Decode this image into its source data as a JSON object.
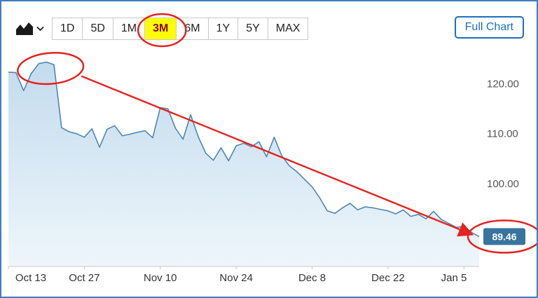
{
  "toolbar": {
    "chart_type_icon": "area-chart-icon",
    "dropdown_icon": "chevron-down-icon",
    "ranges": [
      {
        "label": "1D",
        "active": false
      },
      {
        "label": "5D",
        "active": false
      },
      {
        "label": "1M",
        "active": false
      },
      {
        "label": "3M",
        "active": true
      },
      {
        "label": "6M",
        "active": false
      },
      {
        "label": "1Y",
        "active": false
      },
      {
        "label": "5Y",
        "active": false
      },
      {
        "label": "MAX",
        "active": false
      }
    ],
    "full_chart_label": "Full Chart"
  },
  "chart_data": {
    "type": "area",
    "title": "",
    "xlabel": "",
    "ylabel": "",
    "grid": false,
    "legend": false,
    "x_ticks": [
      {
        "label": "Oct 13",
        "index": 0
      },
      {
        "label": "Oct 27",
        "index": 10
      },
      {
        "label": "Nov 10",
        "index": 20
      },
      {
        "label": "Nov 24",
        "index": 30
      },
      {
        "label": "Dec 8",
        "index": 40
      },
      {
        "label": "Dec 22",
        "index": 50
      },
      {
        "label": "Jan 5",
        "index": 60
      }
    ],
    "y_ticks": [
      {
        "label": "120.00",
        "value": 120.0
      },
      {
        "label": "110.00",
        "value": 110.0
      },
      {
        "label": "100.00",
        "value": 100.0
      }
    ],
    "ylim": [
      83.5,
      125.5
    ],
    "values": [
      122.3,
      122.2,
      118.6,
      122.0,
      124.0,
      124.3,
      123.8,
      111.2,
      110.4,
      110.0,
      109.3,
      111.0,
      107.3,
      110.9,
      111.6,
      109.6,
      109.9,
      110.3,
      110.6,
      109.2,
      115.2,
      115.0,
      111.1,
      108.9,
      113.8,
      109.4,
      106.1,
      104.7,
      107.2,
      104.6,
      107.6,
      108.1,
      107.4,
      108.4,
      105.4,
      109.3,
      105.6,
      103.6,
      102.4,
      100.9,
      99.4,
      97.2,
      94.6,
      94.1,
      95.2,
      96.1,
      94.8,
      95.4,
      95.2,
      94.9,
      94.6,
      94.0,
      94.8,
      93.5,
      93.9,
      93.0,
      94.5,
      92.9,
      92.1,
      91.3,
      91.5,
      90.3,
      89.46
    ],
    "last_price": {
      "label": "89.46",
      "value": 89.46
    }
  },
  "annotations": {
    "color": "#e52320",
    "items": [
      {
        "name": "circle-selected-range-3m",
        "type": "ellipse",
        "target": "range-button-3m"
      },
      {
        "name": "circle-chart-peak",
        "type": "ellipse",
        "target": "price-peak"
      },
      {
        "name": "trend-arrow",
        "type": "arrow",
        "target": "from-peak-to-last-price"
      },
      {
        "name": "circle-last-price",
        "type": "ellipse",
        "target": "last-price-badge"
      }
    ]
  },
  "colors": {
    "accent_blue": "#1d6fc0",
    "frame_border": "#3f7fc1",
    "highlight_yellow": "#ffff00",
    "active_range_text": "#8b0000",
    "button_border": "#c9c9c9",
    "button_text": "#222222",
    "line": "#4f86b2",
    "area_top": "#c3dbee",
    "area_bottom": "#eef6fb",
    "axis_line": "#c8c8c8",
    "x_label": "#333333",
    "y_label": "#555555",
    "badge_bg": "#38749f",
    "badge_text": "#ffffff",
    "icon": "#1a1a1a"
  }
}
